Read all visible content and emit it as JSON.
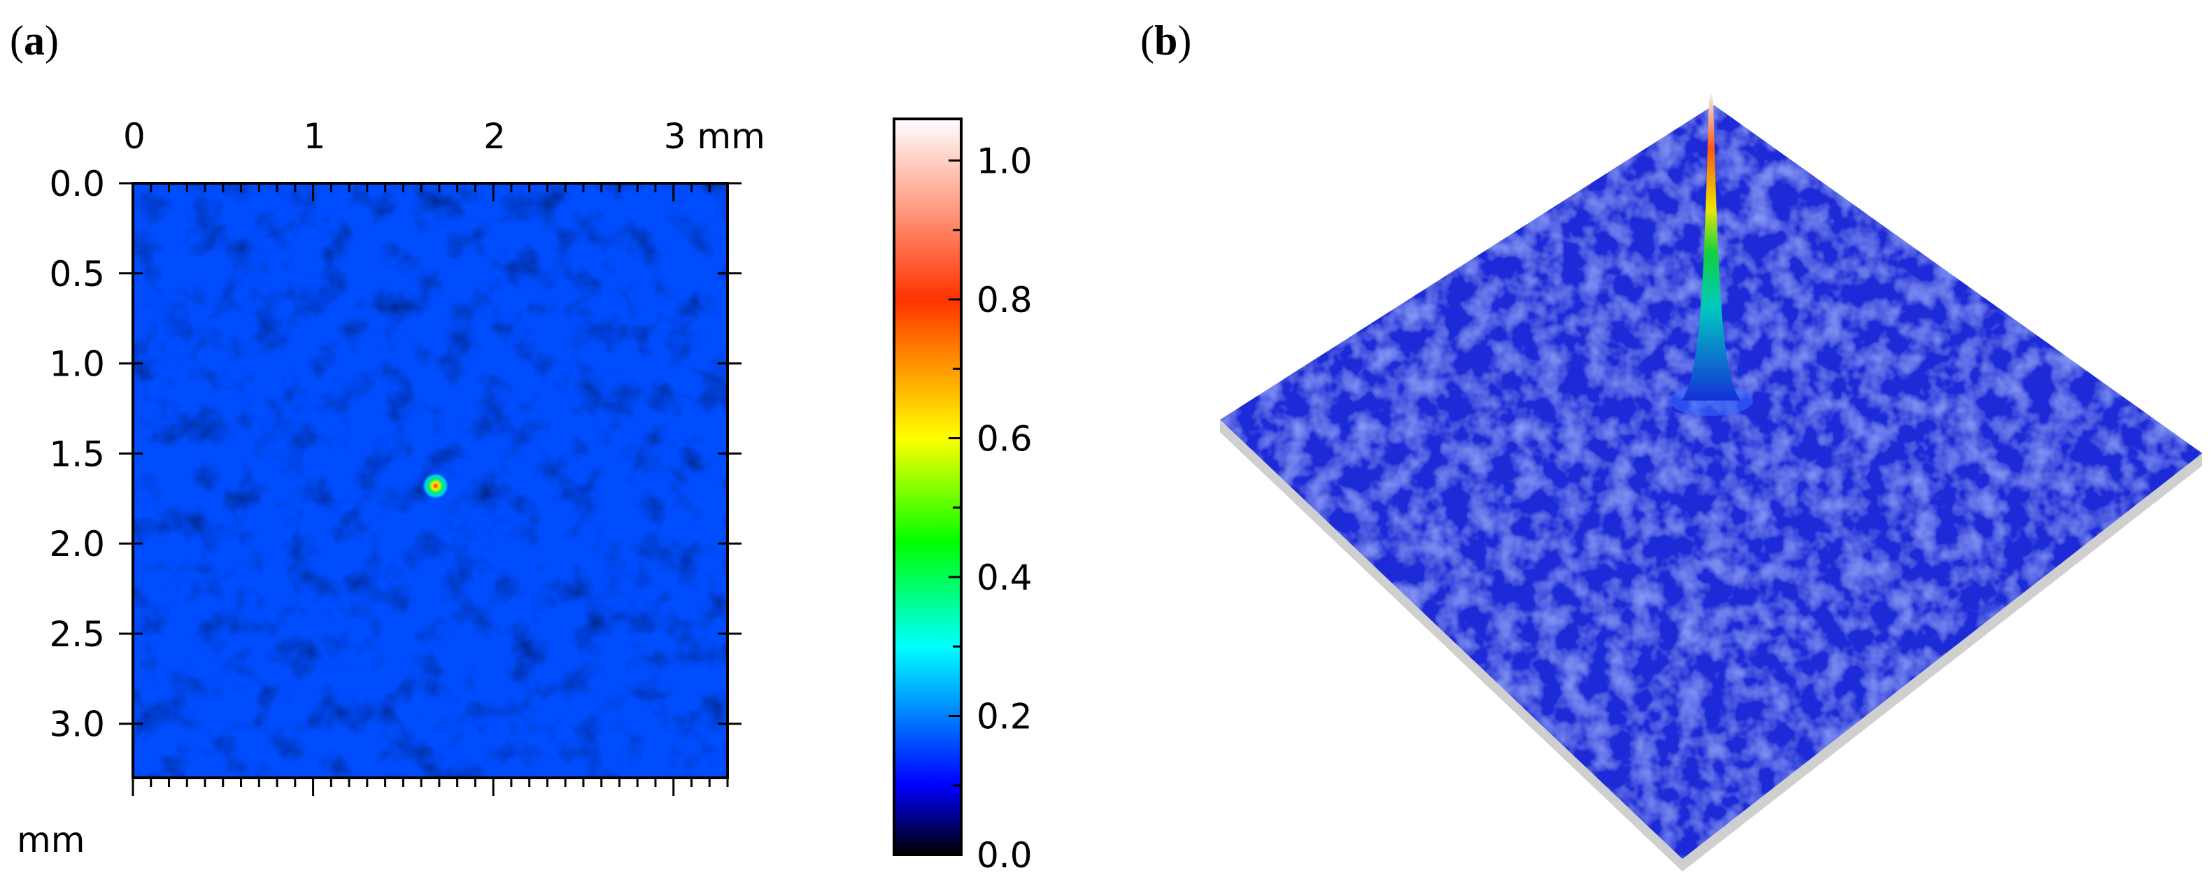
{
  "panels": {
    "a": {
      "open": "(",
      "letter": "a",
      "close": ")"
    },
    "b": {
      "open": "(",
      "letter": "b",
      "close": ")"
    }
  },
  "chart_data": [
    {
      "type": "heatmap",
      "panel": "a",
      "x_ticks": [
        {
          "value": 0,
          "label": "0"
        },
        {
          "value": 1,
          "label": "1"
        },
        {
          "value": 2,
          "label": "2"
        },
        {
          "value": 3,
          "label": "3 mm"
        }
      ],
      "y_ticks": [
        {
          "value": 0.0,
          "label": "0.0"
        },
        {
          "value": 0.5,
          "label": "0.5"
        },
        {
          "value": 1.0,
          "label": "1.0"
        },
        {
          "value": 1.5,
          "label": "1.5"
        },
        {
          "value": 2.0,
          "label": "2.0"
        },
        {
          "value": 2.5,
          "label": "2.5"
        },
        {
          "value": 3.0,
          "label": "3.0"
        }
      ],
      "y_unit_label": "mm",
      "xlim": [
        0,
        3.3
      ],
      "ylim": [
        0,
        3.3
      ],
      "background_level": 0.08,
      "peak": {
        "x": 1.68,
        "y": 1.68,
        "value": 1.0
      },
      "colorbar": {
        "range": [
          0.0,
          1.06
        ],
        "ticks": [
          {
            "value": 0.0,
            "label": "0.0"
          },
          {
            "value": 0.2,
            "label": "0.2"
          },
          {
            "value": 0.4,
            "label": "0.4"
          },
          {
            "value": 0.6,
            "label": "0.6"
          },
          {
            "value": 0.8,
            "label": "0.8"
          },
          {
            "value": 1.0,
            "label": "1.0"
          }
        ],
        "stops": [
          {
            "value": 0.0,
            "color": "#000000"
          },
          {
            "value": 0.1,
            "color": "#0000ff"
          },
          {
            "value": 0.3,
            "color": "#00ffff"
          },
          {
            "value": 0.45,
            "color": "#00ff00"
          },
          {
            "value": 0.6,
            "color": "#ffff00"
          },
          {
            "value": 0.8,
            "color": "#ff3300"
          },
          {
            "value": 1.06,
            "color": "#ffffff"
          }
        ]
      }
    },
    {
      "type": "surface",
      "panel": "b",
      "xlim": [
        0,
        3.3
      ],
      "ylim": [
        0,
        3.3
      ],
      "background_level": 0.08,
      "peak": {
        "x": 1.68,
        "y": 1.68,
        "value": 1.0
      },
      "colors": {
        "surface": "#1a2ad8",
        "base": "#cfcfcf"
      }
    }
  ]
}
